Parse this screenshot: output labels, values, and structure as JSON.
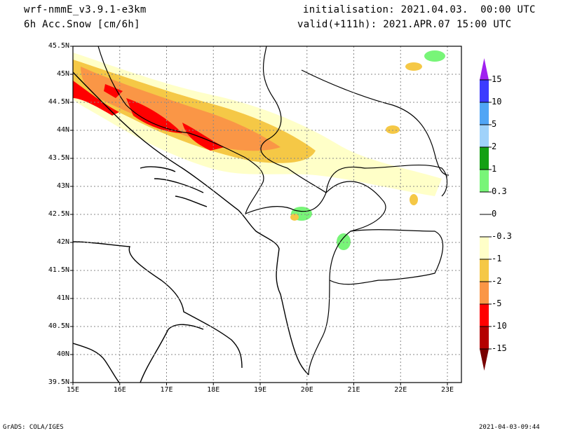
{
  "header": {
    "model": "wrf-nmmE_v3.9.1-e3km",
    "variable": "6h Acc.Snow [cm/6h]",
    "initialisation": "initialisation: 2021.04.03.  00:00 UTC",
    "valid": "valid(+111h): 2021.APR.07 15:00 UTC"
  },
  "axes": {
    "lat_labels": [
      "45.5N",
      "45N",
      "44.5N",
      "44N",
      "43.5N",
      "43N",
      "42.5N",
      "42N",
      "41.5N",
      "41N",
      "40.5N",
      "40N",
      "39.5N"
    ],
    "lon_labels": [
      "15E",
      "16E",
      "17E",
      "18E",
      "19E",
      "20E",
      "21E",
      "22E",
      "23E"
    ]
  },
  "colorbar": {
    "labels": [
      "15",
      "10",
      "5",
      "2",
      "1",
      "0.3",
      "0",
      "-0.3",
      "-1",
      "-2",
      "-5",
      "-10",
      "-15"
    ],
    "colors": [
      "#3c3cff",
      "#50a5f5",
      "#a0d2fa",
      "#14a014",
      "#78f578",
      "#ffffff",
      "#ffffff",
      "#ffffc8",
      "#f5c846",
      "#fa9646",
      "#ff0000",
      "#b40000"
    ],
    "top_tip": "#a020f0",
    "bottom_tip": "#780000"
  },
  "footer": {
    "left": "GrADS: COLA/IGES",
    "right": "2021-04-03-09:44"
  }
}
